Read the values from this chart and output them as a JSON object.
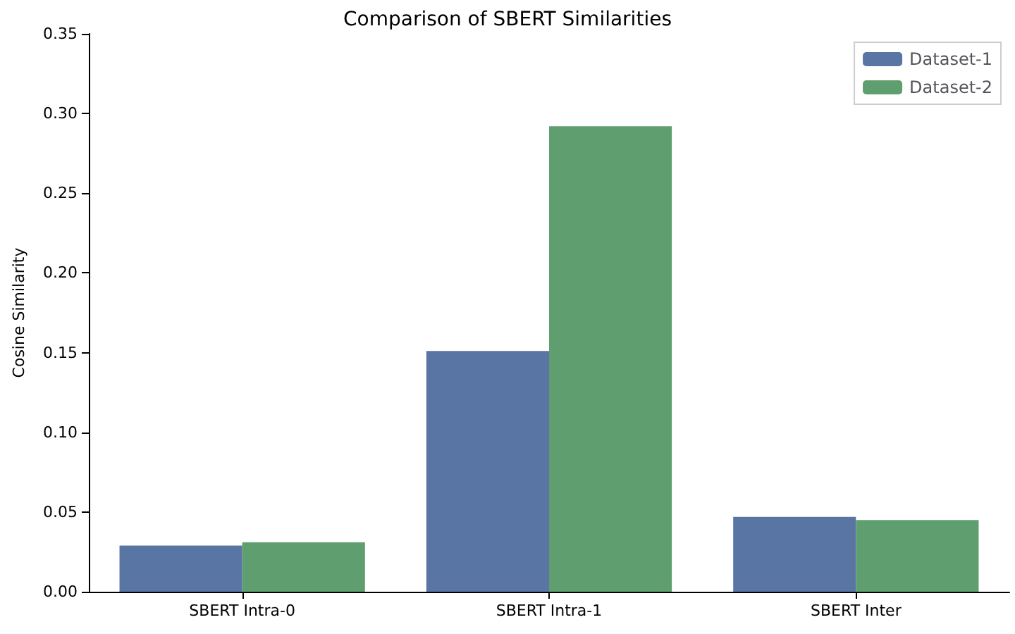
{
  "chart_data": {
    "type": "bar",
    "title": "Comparison of SBERT Similarities",
    "ylabel": "Cosine Similarity",
    "categories": [
      "SBERT Intra-0",
      "SBERT Intra-1",
      "SBERT Inter"
    ],
    "series": [
      {
        "name": "Dataset-1",
        "color": "#5875a4",
        "values": [
          0.029,
          0.151,
          0.047
        ]
      },
      {
        "name": "Dataset-2",
        "color": "#5f9e6e",
        "values": [
          0.031,
          0.292,
          0.045
        ]
      }
    ],
    "ylim": [
      0,
      0.35
    ],
    "yticks": [
      {
        "value": 0,
        "label": "0.00"
      },
      0.05,
      {
        "value": 0.1,
        "label": "0.10"
      },
      0.15,
      {
        "value": 0.2,
        "label": "0.20"
      },
      0.25,
      {
        "value": 0.3,
        "label": "0.30"
      },
      0.35
    ],
    "grid": false,
    "legend": "top right"
  }
}
